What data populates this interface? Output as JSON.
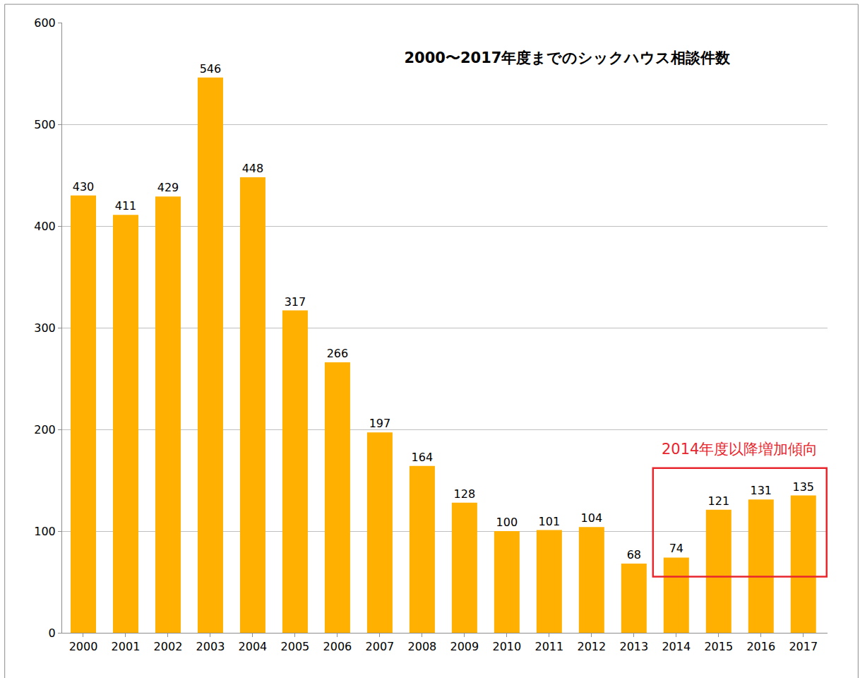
{
  "chart_data": {
    "type": "bar",
    "title": "2000〜2017年度までのシックハウス相談件数",
    "categories": [
      "2000",
      "2001",
      "2002",
      "2003",
      "2004",
      "2005",
      "2006",
      "2007",
      "2008",
      "2009",
      "2010",
      "2011",
      "2012",
      "2013",
      "2014",
      "2015",
      "2016",
      "2017"
    ],
    "values": [
      430,
      411,
      429,
      546,
      448,
      317,
      266,
      197,
      164,
      128,
      100,
      101,
      104,
      68,
      74,
      121,
      131,
      135
    ],
    "color": "#ffb000",
    "ylim": [
      0,
      600
    ],
    "yticks": [
      0,
      100,
      200,
      300,
      400,
      500,
      600
    ],
    "grid": true,
    "data_labels": true,
    "annotations": [
      {
        "text": "2014年度以降増加傾向",
        "x": [
          "2014",
          "2017"
        ],
        "color": "#e8262d"
      }
    ]
  }
}
